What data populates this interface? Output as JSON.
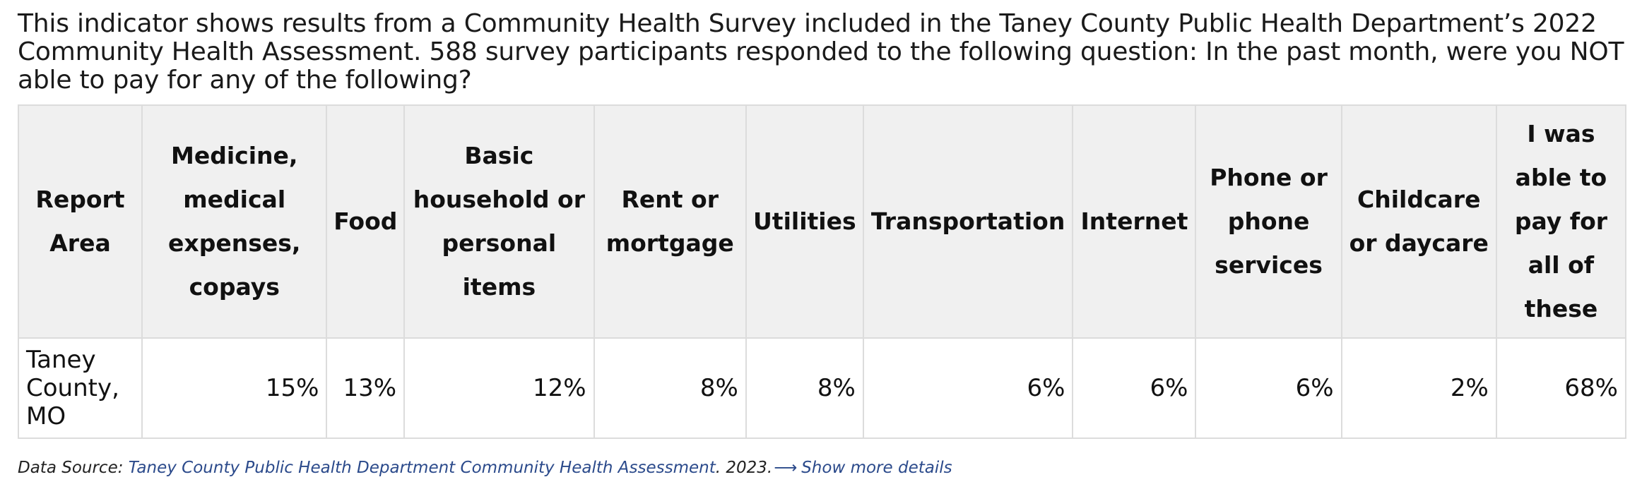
{
  "intro_text": "This indicator shows results from a Community Health Survey included in the Taney County Public Health Department’s 2022 Community Health Assessment. 588 survey participants responded to the following question: In the past month, were you NOT able to pay for any of the following?",
  "table": {
    "headers": [
      "Report Area",
      "Medicine, medical expenses, copays",
      "Food",
      "Basic household or personal items",
      "Rent or mortgage",
      "Utilities",
      "Transportation",
      "Internet",
      "Phone or phone services",
      "Childcare or daycare",
      "I was able to pay for all of these"
    ],
    "rows": [
      {
        "area": "Taney County, MO",
        "values": [
          "15%",
          "13%",
          "12%",
          "8%",
          "8%",
          "6%",
          "6%",
          "6%",
          "2%",
          "68%"
        ]
      }
    ]
  },
  "footer": {
    "source_label": "Data Source: ",
    "source_link": "Taney County Public Health Department Community Health Assessment",
    "source_year": ". 2023.",
    "arrow_icon": "right-arrow-icon",
    "more_label": "Show more details"
  }
}
